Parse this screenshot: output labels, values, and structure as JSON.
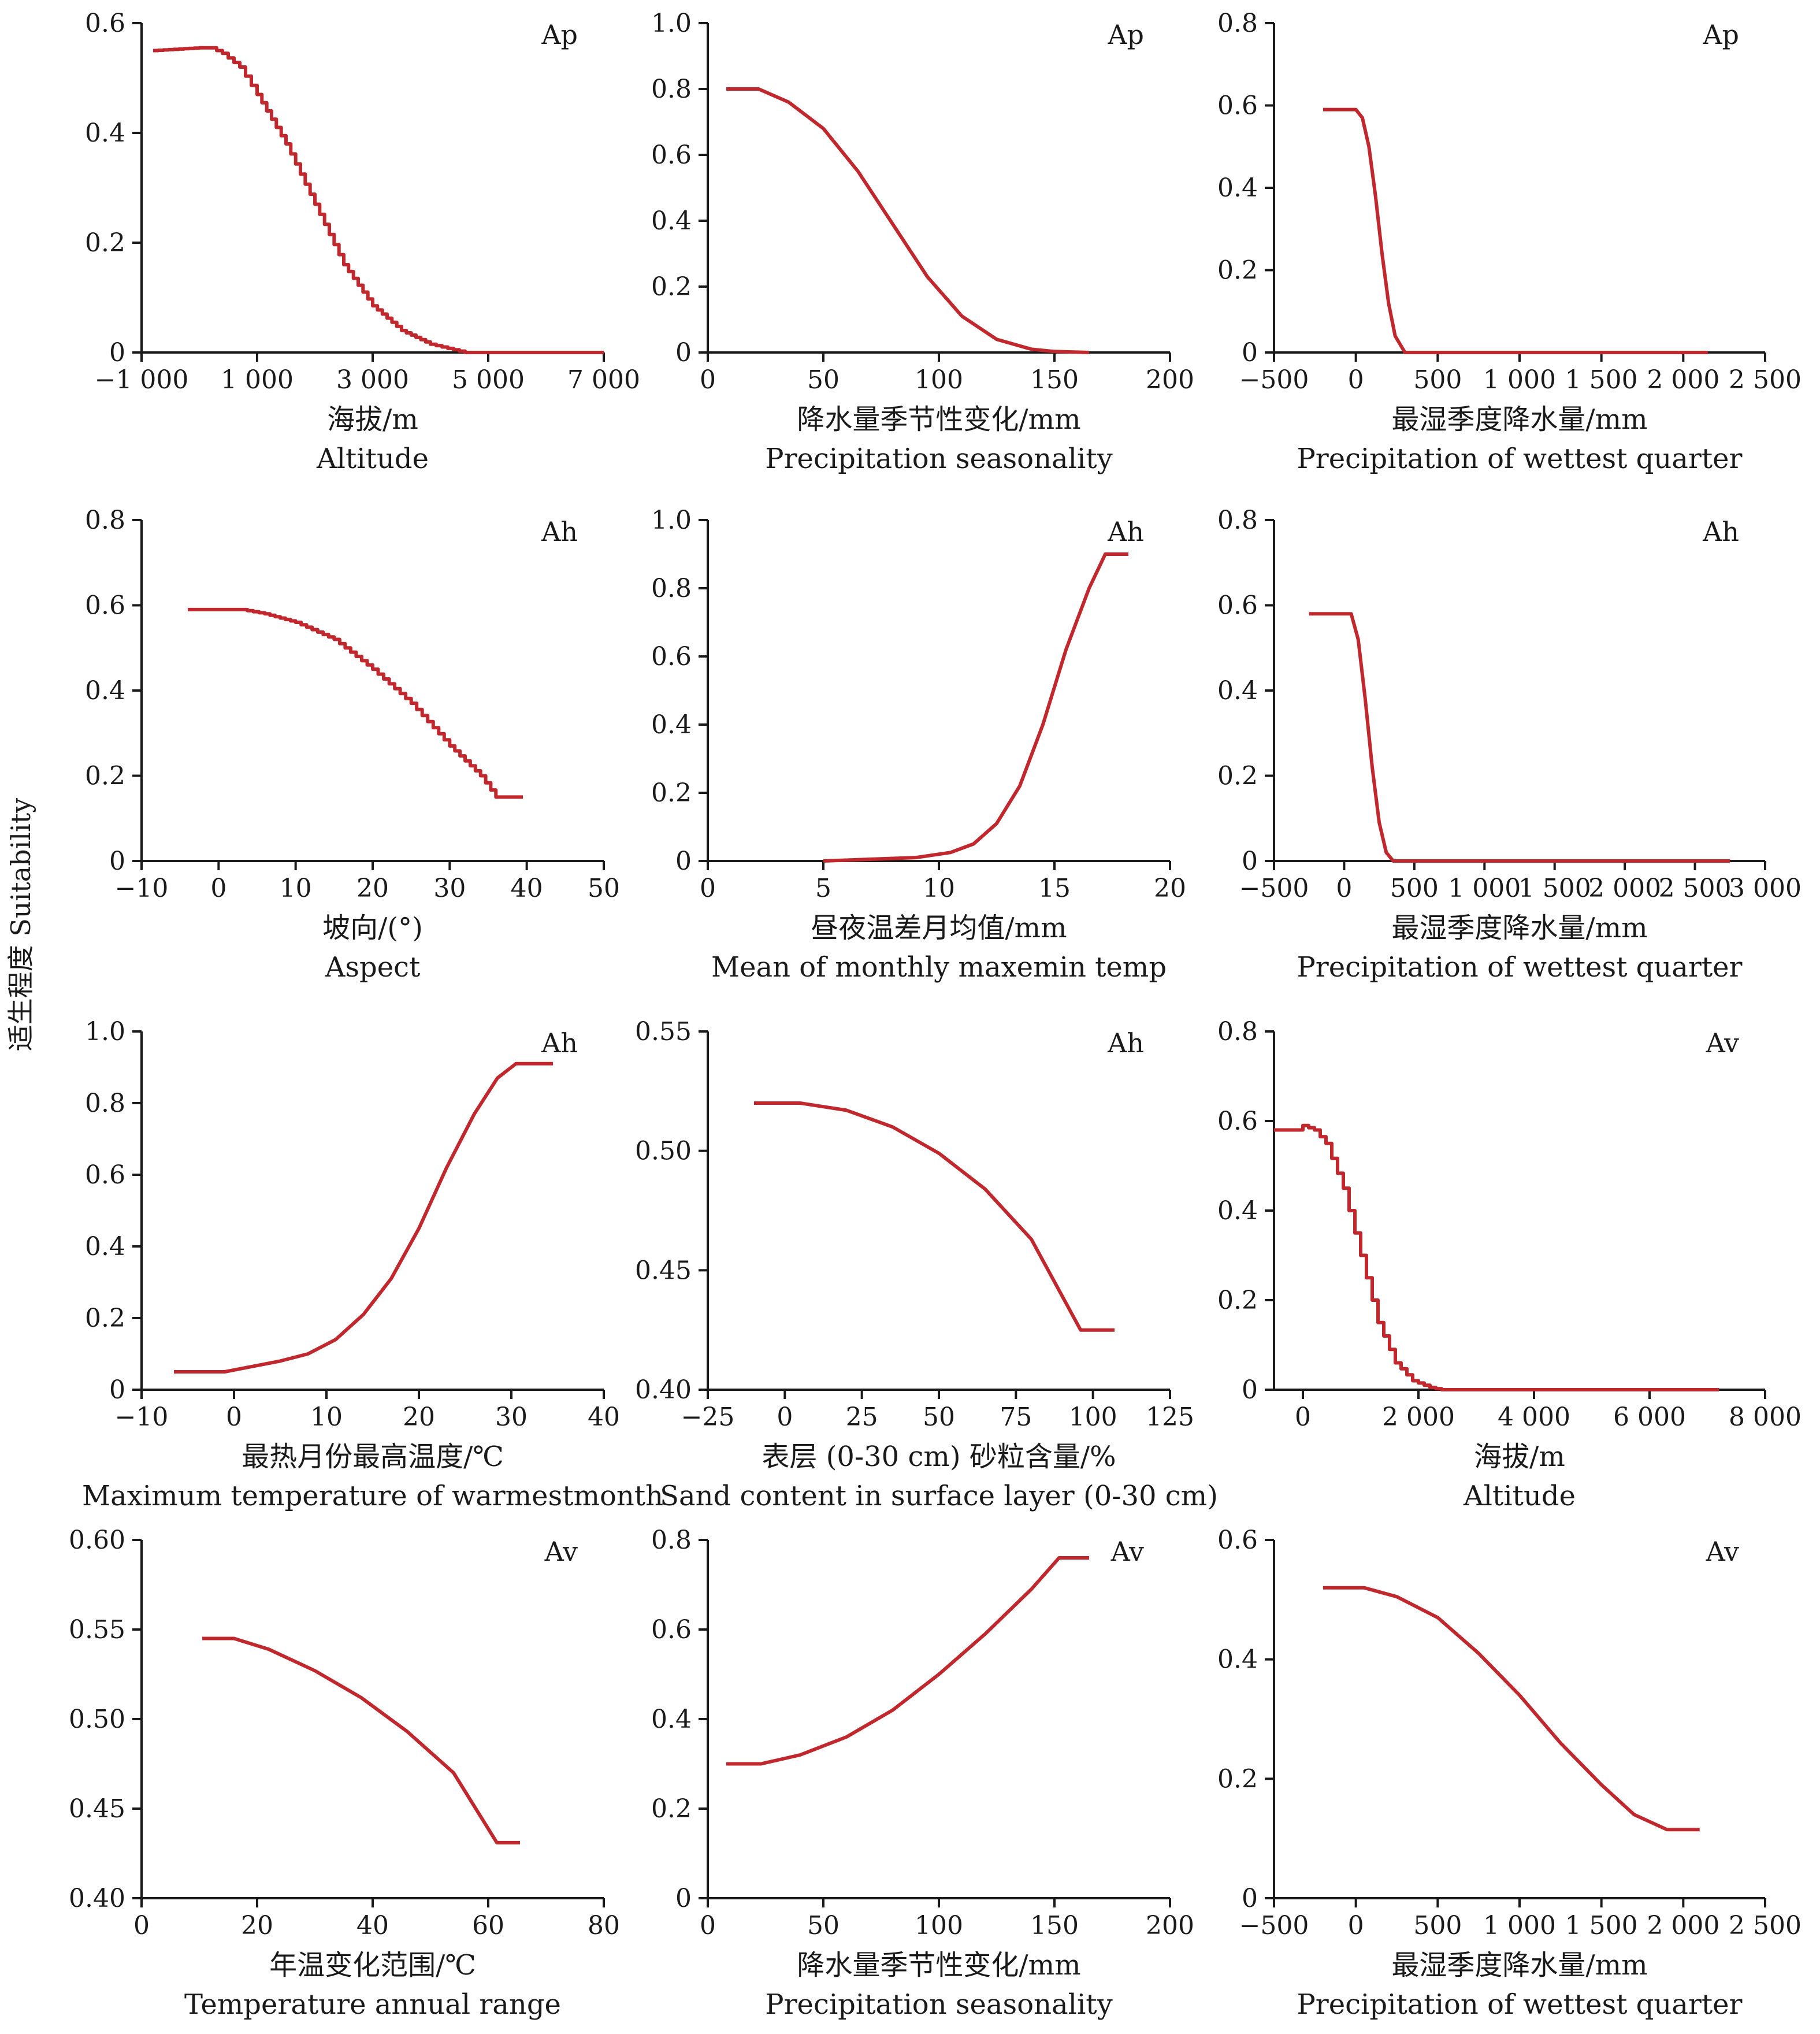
{
  "figure": {
    "y_title": "适生程度 Suitability"
  },
  "chart_data": [
    {
      "type": "line",
      "corner_label": "Ap",
      "xlabel": "海拔/m",
      "xlabel_en": "Altitude",
      "xlim": [
        -1000,
        7000
      ],
      "ylim": [
        0,
        0.6
      ],
      "x_ticks": [
        -1000,
        1000,
        3000,
        5000,
        7000
      ],
      "x_tick_labels": [
        "−1 000",
        "1 000",
        "3 000",
        "5 000",
        "7 000"
      ],
      "y_ticks": [
        0,
        0.2,
        0.4,
        0.6
      ],
      "y_tick_labels": [
        "0",
        "0.2",
        "0.4",
        "0.6"
      ],
      "stepped": true,
      "series": [
        {
          "color": "#c0282d",
          "x": [
            -800,
            0,
            200,
            400,
            700,
            1000,
            1500,
            2000,
            2500,
            3000,
            3500,
            4000,
            4400,
            4600,
            5000,
            7000
          ],
          "y": [
            0.55,
            0.555,
            0.555,
            0.545,
            0.52,
            0.47,
            0.38,
            0.27,
            0.16,
            0.085,
            0.04,
            0.015,
            0.005,
            0.0,
            0.0,
            0.0
          ]
        }
      ]
    },
    {
      "type": "line",
      "corner_label": "Ap",
      "xlabel": "降水量季节性变化/mm",
      "xlabel_en": "Precipitation seasonality",
      "xlim": [
        0,
        200
      ],
      "ylim": [
        0,
        1.0
      ],
      "x_ticks": [
        0,
        50,
        100,
        150,
        200
      ],
      "x_tick_labels": [
        "0",
        "50",
        "100",
        "150",
        "200"
      ],
      "y_ticks": [
        0,
        0.2,
        0.4,
        0.6,
        0.8,
        1.0
      ],
      "y_tick_labels": [
        "0",
        "0.2",
        "0.4",
        "0.6",
        "0.8",
        "1.0"
      ],
      "stepped": false,
      "series": [
        {
          "color": "#c0282d",
          "x": [
            8,
            22,
            35,
            50,
            65,
            80,
            95,
            110,
            125,
            140,
            150,
            165
          ],
          "y": [
            0.8,
            0.8,
            0.76,
            0.68,
            0.55,
            0.39,
            0.23,
            0.11,
            0.04,
            0.01,
            0.003,
            0.0
          ]
        }
      ]
    },
    {
      "type": "line",
      "corner_label": "Ap",
      "xlabel": "最湿季度降水量/mm",
      "xlabel_en": "Precipitation of wettest quarter",
      "xlim": [
        -500,
        2500
      ],
      "ylim": [
        0,
        0.8
      ],
      "x_ticks": [
        -500,
        0,
        500,
        1000,
        1500,
        2000,
        2500
      ],
      "x_tick_labels": [
        "−500",
        "0",
        "500",
        "1 000",
        "1 500",
        "2 000",
        "2 500"
      ],
      "y_ticks": [
        0,
        0.2,
        0.4,
        0.6,
        0.8
      ],
      "y_tick_labels": [
        "0",
        "0.2",
        "0.4",
        "0.6",
        "0.8"
      ],
      "stepped": false,
      "series": [
        {
          "color": "#c0282d",
          "x": [
            -200,
            0,
            40,
            80,
            120,
            160,
            200,
            240,
            300,
            350,
            2150
          ],
          "y": [
            0.59,
            0.59,
            0.57,
            0.5,
            0.38,
            0.24,
            0.12,
            0.04,
            0.0,
            0.0,
            0.0
          ]
        }
      ]
    },
    {
      "type": "line",
      "corner_label": "Ah",
      "xlabel": "坡向/(°)",
      "xlabel_en": "Aspect",
      "xlim": [
        -10,
        50
      ],
      "ylim": [
        0,
        0.8
      ],
      "x_ticks": [
        -10,
        0,
        10,
        20,
        30,
        40,
        50
      ],
      "x_tick_labels": [
        "−10",
        "0",
        "10",
        "20",
        "30",
        "40",
        "50"
      ],
      "y_ticks": [
        0,
        0.2,
        0.4,
        0.6,
        0.8
      ],
      "y_tick_labels": [
        "0",
        "0.2",
        "0.4",
        "0.6",
        "0.8"
      ],
      "stepped": true,
      "series": [
        {
          "color": "#c0282d",
          "x": [
            -4,
            3,
            6,
            10,
            15,
            20,
            25,
            30,
            34,
            36,
            39.5
          ],
          "y": [
            0.59,
            0.59,
            0.58,
            0.56,
            0.52,
            0.45,
            0.37,
            0.27,
            0.2,
            0.15,
            0.15
          ]
        }
      ]
    },
    {
      "type": "line",
      "corner_label": "Ah",
      "xlabel": "昼夜温差月均值/mm",
      "xlabel_en": "Mean of monthly maxemin temp",
      "xlim": [
        0,
        20
      ],
      "ylim": [
        0,
        1.0
      ],
      "x_ticks": [
        0,
        5,
        10,
        15,
        20
      ],
      "x_tick_labels": [
        "0",
        "5",
        "10",
        "15",
        "20"
      ],
      "y_ticks": [
        0,
        0.2,
        0.4,
        0.6,
        0.8,
        1.0
      ],
      "y_tick_labels": [
        "0",
        "0.2",
        "0.4",
        "0.6",
        "0.8",
        "1.0"
      ],
      "stepped": false,
      "series": [
        {
          "color": "#c0282d",
          "x": [
            5,
            7,
            9,
            10.5,
            11.5,
            12.5,
            13.5,
            14.5,
            15.5,
            16.5,
            17.2,
            18.2
          ],
          "y": [
            0.0,
            0.005,
            0.01,
            0.025,
            0.05,
            0.11,
            0.22,
            0.4,
            0.62,
            0.8,
            0.9,
            0.9
          ]
        }
      ]
    },
    {
      "type": "line",
      "corner_label": "Ah",
      "xlabel": "最湿季度降水量/mm",
      "xlabel_en": "Precipitation of wettest quarter",
      "xlim": [
        -500,
        3000
      ],
      "ylim": [
        0,
        0.8
      ],
      "x_ticks": [
        -500,
        0,
        500,
        1000,
        1500,
        2000,
        2500,
        3000
      ],
      "x_tick_labels": [
        "−500",
        "0",
        "500",
        "1 000",
        "1 500",
        "2 000",
        "2 500",
        "3 000"
      ],
      "y_ticks": [
        0,
        0.2,
        0.4,
        0.6,
        0.8
      ],
      "y_tick_labels": [
        "0",
        "0.2",
        "0.4",
        "0.6",
        "0.8"
      ],
      "stepped": false,
      "series": [
        {
          "color": "#c0282d",
          "x": [
            -250,
            50,
            100,
            150,
            200,
            250,
            300,
            350,
            400,
            2750
          ],
          "y": [
            0.58,
            0.58,
            0.52,
            0.38,
            0.22,
            0.09,
            0.02,
            0.0,
            0.0,
            0.0
          ]
        }
      ]
    },
    {
      "type": "line",
      "corner_label": "Ah",
      "xlabel": "最热月份最高温度/℃",
      "xlabel_en": "Maximum temperature of warmestmonth",
      "xlim": [
        -10,
        40
      ],
      "ylim": [
        0,
        1.0
      ],
      "x_ticks": [
        -10,
        0,
        10,
        20,
        30,
        40
      ],
      "x_tick_labels": [
        "−10",
        "0",
        "10",
        "20",
        "30",
        "40"
      ],
      "y_ticks": [
        0,
        0.2,
        0.4,
        0.6,
        0.8,
        1.0
      ],
      "y_tick_labels": [
        "0",
        "0.2",
        "0.4",
        "0.6",
        "0.8",
        "1.0"
      ],
      "stepped": false,
      "series": [
        {
          "color": "#c0282d",
          "x": [
            -6.5,
            -1,
            2,
            5,
            8,
            11,
            14,
            17,
            20,
            23,
            26,
            28.5,
            30.5,
            34.5
          ],
          "y": [
            0.05,
            0.05,
            0.065,
            0.08,
            0.1,
            0.14,
            0.21,
            0.31,
            0.45,
            0.62,
            0.77,
            0.87,
            0.91,
            0.91
          ]
        }
      ]
    },
    {
      "type": "line",
      "corner_label": "Ah",
      "xlabel": "表层 (0-30 cm) 砂粒含量/%",
      "xlabel_en": "Sand content in surface layer (0-30 cm)",
      "xlim": [
        -25,
        125
      ],
      "ylim": [
        0.4,
        0.55
      ],
      "x_ticks": [
        -25,
        0,
        25,
        50,
        75,
        100,
        125
      ],
      "x_tick_labels": [
        "−25",
        "0",
        "25",
        "50",
        "75",
        "100",
        "125"
      ],
      "y_ticks": [
        0.4,
        0.45,
        0.5,
        0.55
      ],
      "y_tick_labels": [
        "0.40",
        "0.45",
        "0.50",
        "0.55"
      ],
      "stepped": false,
      "series": [
        {
          "color": "#c0282d",
          "x": [
            -10,
            5,
            20,
            35,
            50,
            65,
            80,
            96,
            107
          ],
          "y": [
            0.52,
            0.52,
            0.517,
            0.51,
            0.499,
            0.484,
            0.463,
            0.425,
            0.425
          ]
        }
      ]
    },
    {
      "type": "line",
      "corner_label": "Av",
      "xlabel": "海拔/m",
      "xlabel_en": "Altitude",
      "xlim": [
        -500,
        8000
      ],
      "ylim": [
        0,
        0.8
      ],
      "x_ticks": [
        0,
        2000,
        4000,
        6000,
        8000
      ],
      "x_tick_labels": [
        "0",
        "2 000",
        "4 000",
        "6 000",
        "8 000"
      ],
      "y_ticks": [
        0,
        0.2,
        0.4,
        0.6,
        0.8
      ],
      "y_tick_labels": [
        "0",
        "0.2",
        "0.4",
        "0.6",
        "0.8"
      ],
      "stepped": true,
      "series": [
        {
          "color": "#c0282d",
          "x": [
            -500,
            -100,
            0,
            200,
            400,
            700,
            1000,
            1300,
            1600,
            1900,
            2200,
            2400,
            7200
          ],
          "y": [
            0.58,
            0.58,
            0.59,
            0.58,
            0.55,
            0.45,
            0.3,
            0.15,
            0.06,
            0.02,
            0.005,
            0.0,
            0.0
          ]
        }
      ]
    },
    {
      "type": "line",
      "corner_label": "Av",
      "xlabel": "年温变化范围/℃",
      "xlabel_en": "Temperature annual range",
      "xlim": [
        0,
        80
      ],
      "ylim": [
        0.4,
        0.6
      ],
      "x_ticks": [
        0,
        20,
        40,
        60,
        80
      ],
      "x_tick_labels": [
        "0",
        "20",
        "40",
        "60",
        "80"
      ],
      "y_ticks": [
        0.4,
        0.45,
        0.5,
        0.55,
        0.6
      ],
      "y_tick_labels": [
        "0.40",
        "0.45",
        "0.50",
        "0.55",
        "0.60"
      ],
      "stepped": false,
      "series": [
        {
          "color": "#c0282d",
          "x": [
            10.5,
            16,
            22,
            30,
            38,
            46,
            54,
            61.5,
            65.5
          ],
          "y": [
            0.545,
            0.545,
            0.539,
            0.527,
            0.512,
            0.493,
            0.47,
            0.431,
            0.431
          ]
        }
      ]
    },
    {
      "type": "line",
      "corner_label": "Av",
      "xlabel": "降水量季节性变化/mm",
      "xlabel_en": "Precipitation seasonality",
      "xlim": [
        0,
        200
      ],
      "ylim": [
        0,
        0.8
      ],
      "x_ticks": [
        0,
        50,
        100,
        150,
        200
      ],
      "x_tick_labels": [
        "0",
        "50",
        "100",
        "150",
        "200"
      ],
      "y_ticks": [
        0,
        0.2,
        0.4,
        0.6,
        0.8
      ],
      "y_tick_labels": [
        "0",
        "0.2",
        "0.4",
        "0.6",
        "0.8"
      ],
      "stepped": false,
      "series": [
        {
          "color": "#c0282d",
          "x": [
            8,
            23,
            40,
            60,
            80,
            100,
            120,
            140,
            152,
            165
          ],
          "y": [
            0.3,
            0.3,
            0.32,
            0.36,
            0.42,
            0.5,
            0.59,
            0.69,
            0.76,
            0.76
          ]
        }
      ]
    },
    {
      "type": "line",
      "corner_label": "Av",
      "xlabel": "最湿季度降水量/mm",
      "xlabel_en": "Precipitation of wettest quarter",
      "xlim": [
        -500,
        2500
      ],
      "ylim": [
        0,
        0.6
      ],
      "x_ticks": [
        -500,
        0,
        500,
        1000,
        1500,
        2000,
        2500
      ],
      "x_tick_labels": [
        "−500",
        "0",
        "500",
        "1 000",
        "1 500",
        "2 000",
        "2 500"
      ],
      "y_ticks": [
        0,
        0.2,
        0.4,
        0.6
      ],
      "y_tick_labels": [
        "0",
        "0.2",
        "0.4",
        "0.6"
      ],
      "stepped": false,
      "series": [
        {
          "color": "#c0282d",
          "x": [
            -200,
            50,
            250,
            500,
            750,
            1000,
            1250,
            1500,
            1700,
            1900,
            2100
          ],
          "y": [
            0.52,
            0.52,
            0.505,
            0.47,
            0.41,
            0.34,
            0.26,
            0.19,
            0.14,
            0.115,
            0.115
          ]
        }
      ]
    }
  ]
}
